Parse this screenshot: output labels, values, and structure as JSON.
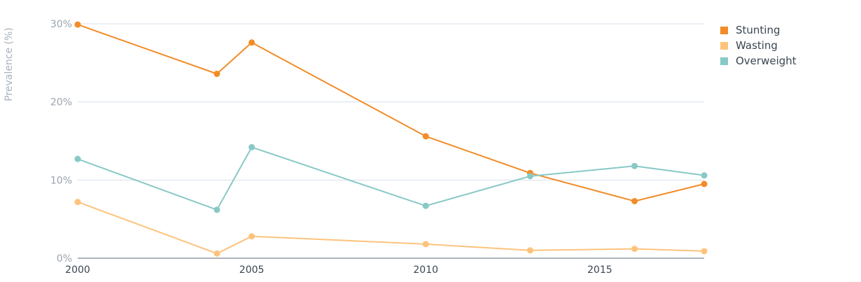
{
  "chart_data": {
    "type": "line",
    "title": "",
    "xlabel": "",
    "ylabel": "Prevalence (%)",
    "xlim": [
      2000,
      2018
    ],
    "ylim": [
      0,
      30
    ],
    "x_ticks": [
      "2000",
      "2005",
      "2010",
      "2015"
    ],
    "y_ticks": [
      "0%",
      "10%",
      "20%",
      "30%"
    ],
    "grid": true,
    "legend_position": "top-right",
    "series": [
      {
        "name": "Stunting",
        "color": "#f28c28",
        "x": [
          2000,
          2004,
          2005,
          2010,
          2013,
          2016,
          2018
        ],
        "values": [
          29.9,
          23.6,
          27.6,
          15.6,
          10.9,
          7.3,
          9.5
        ]
      },
      {
        "name": "Wasting",
        "color": "#fdc37c",
        "x": [
          2000,
          2004,
          2005,
          2010,
          2013,
          2016,
          2018
        ],
        "values": [
          7.2,
          0.6,
          2.8,
          1.8,
          1.0,
          1.2,
          0.9
        ]
      },
      {
        "name": "Overweight",
        "color": "#88c9c5",
        "x": [
          2000,
          2004,
          2005,
          2010,
          2013,
          2016,
          2018
        ],
        "values": [
          12.7,
          6.2,
          14.2,
          6.7,
          10.5,
          11.8,
          10.6
        ]
      }
    ]
  }
}
